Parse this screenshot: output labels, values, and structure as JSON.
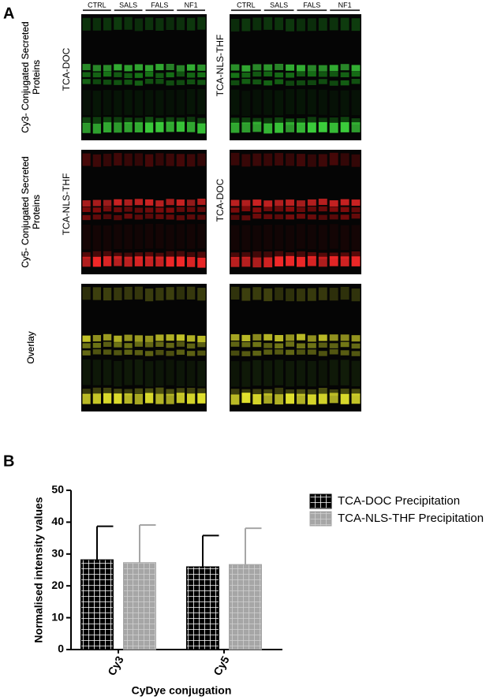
{
  "panel_a": {
    "label": "A",
    "lane_groups": [
      "CTRL",
      "SALS",
      "FALS",
      "NF1"
    ],
    "rows": [
      {
        "row_label": [
          "Cy3- Conjugated Secreted",
          "Proteins"
        ],
        "left_label": "TCA-DOC",
        "right_label": "TCA-NLS-THF"
      },
      {
        "row_label": [
          "Cy5- Conjugated Secreted",
          "Proteins"
        ],
        "left_label": "TCA-NLS-THF",
        "right_label": "TCA-DOC"
      },
      {
        "row_label": [
          "Overlay"
        ],
        "left_label": null,
        "right_label": null
      }
    ]
  },
  "panel_b": {
    "label": "B"
  },
  "chart_data": {
    "type": "bar",
    "y_label": "Normalised intensity values",
    "x_label": "CyDye conjugation",
    "categories": [
      "Cy3",
      "Cy5"
    ],
    "series": [
      {
        "name": "TCA-DOC Precipitation",
        "color": "#000000",
        "values": [
          28.2,
          26.0
        ],
        "errors": [
          10.5,
          9.8
        ]
      },
      {
        "name": "TCA-NLS-THF Precipitation",
        "color": "#a6a6a6",
        "values": [
          27.3,
          26.7
        ],
        "errors": [
          11.8,
          11.4
        ]
      }
    ],
    "ylim": [
      0,
      50
    ],
    "yticks": [
      0,
      10,
      20,
      30,
      40,
      50
    ],
    "legend": "upper right"
  }
}
